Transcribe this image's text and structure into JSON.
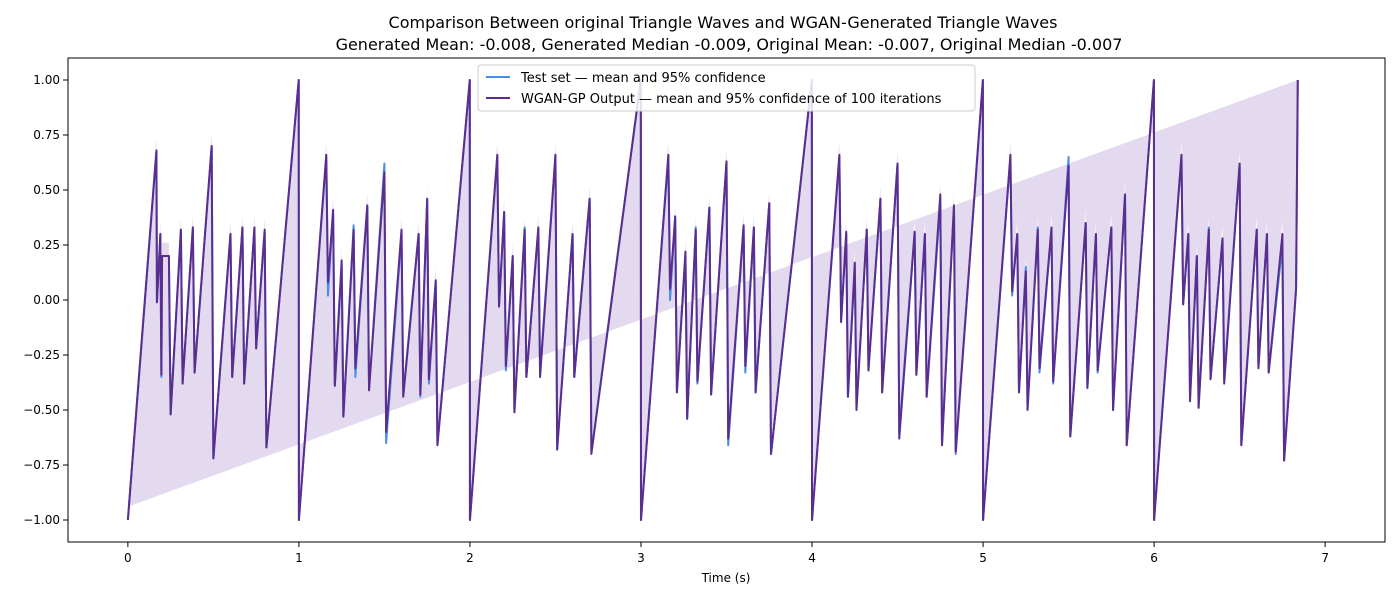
{
  "chart_data": {
    "type": "line",
    "title": "Comparison Between original Triangle Waves and WGAN-Generated Triangle Waves",
    "subtitle": "Generated Mean: -0.008, Generated Median -0.009, Original Mean: -0.007, Original Median -0.007",
    "xlabel": "Time (s)",
    "ylabel": "",
    "xlim": [
      -0.35,
      7.35
    ],
    "ylim": [
      -1.1,
      1.1
    ],
    "x_ticks": [
      0,
      1,
      2,
      3,
      4,
      5,
      6,
      7
    ],
    "x_tick_labels": [
      "0",
      "1",
      "2",
      "3",
      "4",
      "5",
      "6",
      "7"
    ],
    "y_ticks": [
      -1.0,
      -0.75,
      -0.5,
      -0.25,
      0.0,
      0.25,
      0.5,
      0.75,
      1.0
    ],
    "y_tick_labels": [
      "−1.00",
      "−0.75",
      "−0.50",
      "−0.25",
      "0.00",
      "0.25",
      "0.50",
      "0.75",
      "1.00"
    ],
    "grid": false,
    "legend_position": "top-center",
    "series": [
      {
        "name": "Test set — mean and 95% confidence",
        "color": "#4a8fe7",
        "band_color": "#4a8fe7"
      },
      {
        "name": "WGAN-GP Output — mean and 95% confidence of 100 iterations",
        "color": "#5b2d8e",
        "band_color": "#8e6bc0"
      }
    ],
    "x": [
      0,
      0.167,
      0.17,
      0.19,
      0.196,
      0.2,
      0.2,
      0.24,
      0.25,
      0.25,
      0.31,
      0.32,
      0.32,
      0.38,
      0.39,
      0.39,
      0.49,
      0.5,
      0.5,
      0.6,
      0.61,
      0.61,
      0.67,
      0.68,
      0.68,
      0.74,
      0.75,
      0.75,
      0.8,
      0.81,
      0.81,
      0.999,
      1.0,
      1.0,
      1.16,
      1.17,
      1.17,
      1.2,
      1.21,
      1.21,
      1.25,
      1.26,
      1.26,
      1.32,
      1.33,
      1.33,
      1.4,
      1.41,
      1.41,
      1.5,
      1.51,
      1.51,
      1.6,
      1.61,
      1.61,
      1.7,
      1.71,
      1.71,
      1.75,
      1.76,
      1.76,
      1.8,
      1.81,
      1.81,
      1.999,
      2.0,
      2.0,
      2.16,
      2.17,
      2.17,
      2.2,
      2.21,
      2.21,
      2.25,
      2.26,
      2.26,
      2.32,
      2.33,
      2.33,
      2.4,
      2.41,
      2.41,
      2.5,
      2.51,
      2.51,
      2.6,
      2.61,
      2.61,
      2.7,
      2.71,
      2.71,
      2.999,
      3.0,
      3.0,
      3.16,
      3.17,
      3.17,
      3.2,
      3.21,
      3.21,
      3.26,
      3.27,
      3.27,
      3.32,
      3.33,
      3.33,
      3.4,
      3.41,
      3.41,
      3.5,
      3.51,
      3.51,
      3.6,
      3.61,
      3.61,
      3.66,
      3.67,
      3.67,
      3.75,
      3.76,
      3.76,
      3.999,
      4.0,
      4.0,
      4.16,
      4.17,
      4.17,
      4.2,
      4.21,
      4.21,
      4.25,
      4.26,
      4.26,
      4.32,
      4.33,
      4.33,
      4.4,
      4.41,
      4.41,
      4.5,
      4.51,
      4.51,
      4.6,
      4.61,
      4.61,
      4.66,
      4.67,
      4.67,
      4.75,
      4.76,
      4.76,
      4.83,
      4.84,
      4.84,
      4.999,
      5.0,
      5.0,
      5.16,
      5.17,
      5.17,
      5.2,
      5.21,
      5.21,
      5.25,
      5.26,
      5.26,
      5.32,
      5.33,
      5.33,
      5.4,
      5.41,
      5.41,
      5.5,
      5.51,
      5.51,
      5.6,
      5.61,
      5.61,
      5.66,
      5.67,
      5.67,
      5.75,
      5.76,
      5.76,
      5.83,
      5.84,
      5.84,
      5.999,
      6.0,
      6.0,
      6.16,
      6.17,
      6.17,
      6.2,
      6.21,
      6.21,
      6.25,
      6.26,
      6.26,
      6.32,
      6.33,
      6.33,
      6.4,
      6.41,
      6.41,
      6.5,
      6.51,
      6.51,
      6.6,
      6.61,
      6.61,
      6.66,
      6.67,
      6.67,
      6.75,
      6.76,
      6.76,
      6.83,
      6.84,
      6.84,
      7.0
    ],
    "y_test_mean": [
      -1.0,
      0.67,
      -0.01,
      0.3,
      -0.35,
      0.2,
      0.2,
      0.2,
      -0.52,
      -0.52,
      0.32,
      -0.38,
      -0.38,
      0.33,
      -0.33,
      -0.33,
      0.7,
      -0.72,
      -0.72,
      0.3,
      -0.35,
      -0.35,
      0.33,
      -0.38,
      -0.38,
      0.33,
      -0.22,
      -0.22,
      0.31,
      -0.67,
      -0.67,
      1.0,
      -1.0,
      -1.0,
      0.65,
      0.02,
      0.02,
      0.4,
      -0.39,
      -0.39,
      0.15,
      -0.53,
      -0.53,
      0.34,
      -0.35,
      -0.35,
      0.43,
      -0.41,
      -0.41,
      0.62,
      -0.65,
      -0.65,
      0.3,
      -0.43,
      -0.43,
      0.3,
      -0.44,
      -0.44,
      0.46,
      -0.38,
      -0.38,
      0.08,
      -0.66,
      -0.66,
      1.0,
      -1.0,
      -1.0,
      0.65,
      -0.03,
      -0.03,
      0.4,
      -0.32,
      -0.32,
      0.2,
      -0.51,
      -0.51,
      0.33,
      -0.35,
      -0.35,
      0.32,
      -0.33,
      -0.33,
      0.66,
      -0.68,
      -0.68,
      0.3,
      -0.35,
      -0.35,
      0.46,
      -0.69,
      -0.69,
      1.0,
      -1.0,
      -1.0,
      0.65,
      0.0,
      0.0,
      0.38,
      -0.42,
      -0.42,
      0.2,
      -0.54,
      -0.54,
      0.33,
      -0.38,
      -0.38,
      0.42,
      -0.43,
      -0.43,
      0.63,
      -0.66,
      -0.66,
      0.33,
      -0.33,
      -0.33,
      0.33,
      -0.42,
      -0.42,
      0.44,
      -0.7,
      -0.7,
      1.0,
      -1.0,
      -1.0,
      0.65,
      -0.1,
      -0.1,
      0.3,
      -0.44,
      -0.44,
      0.15,
      -0.49,
      -0.49,
      0.32,
      -0.32,
      -0.32,
      0.46,
      -0.42,
      -0.42,
      0.62,
      -0.6,
      -0.6,
      0.31,
      -0.34,
      -0.34,
      0.3,
      -0.44,
      -0.44,
      0.44,
      -0.66,
      -0.66,
      0.43,
      -0.7,
      -0.7,
      1.0,
      -1.0,
      -1.0,
      0.65,
      0.02,
      0.02,
      0.3,
      -0.42,
      -0.42,
      0.15,
      -0.49,
      -0.49,
      0.33,
      -0.33,
      -0.33,
      0.32,
      -0.38,
      -0.38,
      0.65,
      -0.62,
      -0.62,
      0.35,
      -0.4,
      -0.4,
      0.3,
      -0.33,
      -0.33,
      0.33,
      -0.5,
      -0.5,
      0.48,
      -0.66,
      -0.66,
      1.0,
      -1.0,
      -1.0,
      0.65,
      -0.02,
      -0.02,
      0.3,
      -0.43,
      -0.43,
      0.2,
      -0.49,
      -0.49,
      0.33,
      -0.36,
      -0.36,
      0.28,
      -0.36,
      -0.36,
      0.62,
      -0.66,
      -0.66,
      0.32,
      -0.3,
      -0.3,
      0.3,
      -0.33,
      -0.33,
      0.25,
      -0.73,
      -0.73,
      0.05,
      1.0
    ],
    "y_generated_mean": [
      -1.0,
      0.68,
      -0.01,
      0.3,
      -0.34,
      0.2,
      0.2,
      0.2,
      -0.52,
      -0.52,
      0.32,
      -0.38,
      -0.38,
      0.33,
      -0.33,
      -0.33,
      0.7,
      -0.72,
      -0.72,
      0.3,
      -0.35,
      -0.35,
      0.33,
      -0.38,
      -0.38,
      0.33,
      -0.22,
      -0.22,
      0.32,
      -0.67,
      -0.67,
      1.0,
      -1.0,
      -1.0,
      0.66,
      0.08,
      0.08,
      0.41,
      -0.39,
      -0.39,
      0.18,
      -0.53,
      -0.53,
      0.32,
      -0.31,
      -0.31,
      0.43,
      -0.41,
      -0.41,
      0.58,
      -0.6,
      -0.6,
      0.32,
      -0.44,
      -0.44,
      0.3,
      -0.43,
      -0.43,
      0.46,
      -0.36,
      -0.36,
      0.09,
      -0.66,
      -0.66,
      1.0,
      -1.0,
      -1.0,
      0.66,
      -0.03,
      -0.03,
      0.4,
      -0.3,
      -0.3,
      0.2,
      -0.51,
      -0.51,
      0.32,
      -0.35,
      -0.35,
      0.33,
      -0.35,
      -0.35,
      0.66,
      -0.68,
      -0.68,
      0.3,
      -0.35,
      -0.35,
      0.46,
      -0.7,
      -0.7,
      1.0,
      -1.0,
      -1.0,
      0.66,
      0.05,
      0.05,
      0.38,
      -0.42,
      -0.42,
      0.22,
      -0.54,
      -0.54,
      0.32,
      -0.37,
      -0.37,
      0.42,
      -0.43,
      -0.43,
      0.63,
      -0.63,
      -0.63,
      0.34,
      -0.3,
      -0.3,
      0.33,
      -0.42,
      -0.42,
      0.44,
      -0.7,
      -0.7,
      1.0,
      -1.0,
      -1.0,
      0.66,
      -0.1,
      -0.1,
      0.31,
      -0.44,
      -0.44,
      0.17,
      -0.5,
      -0.5,
      0.32,
      -0.32,
      -0.32,
      0.46,
      -0.42,
      -0.42,
      0.62,
      -0.63,
      -0.63,
      0.31,
      -0.34,
      -0.34,
      0.3,
      -0.44,
      -0.44,
      0.48,
      -0.66,
      -0.66,
      0.43,
      -0.69,
      -0.69,
      1.0,
      -1.0,
      -1.0,
      0.66,
      0.04,
      0.04,
      0.3,
      -0.42,
      -0.42,
      0.13,
      -0.5,
      -0.5,
      0.32,
      -0.31,
      -0.31,
      0.33,
      -0.37,
      -0.37,
      0.61,
      -0.62,
      -0.62,
      0.35,
      -0.4,
      -0.4,
      0.3,
      -0.32,
      -0.32,
      0.33,
      -0.5,
      -0.5,
      0.48,
      -0.66,
      -0.66,
      1.0,
      -1.0,
      -1.0,
      0.66,
      -0.02,
      -0.02,
      0.3,
      -0.46,
      -0.46,
      0.2,
      -0.49,
      -0.49,
      0.32,
      -0.36,
      -0.36,
      0.28,
      -0.38,
      -0.38,
      0.62,
      -0.66,
      -0.66,
      0.32,
      -0.31,
      -0.31,
      0.3,
      -0.33,
      -0.33,
      0.3,
      -0.73,
      -0.73,
      0.05,
      1.0
    ],
    "y_generated_ci_halfwidth": 0.06
  }
}
